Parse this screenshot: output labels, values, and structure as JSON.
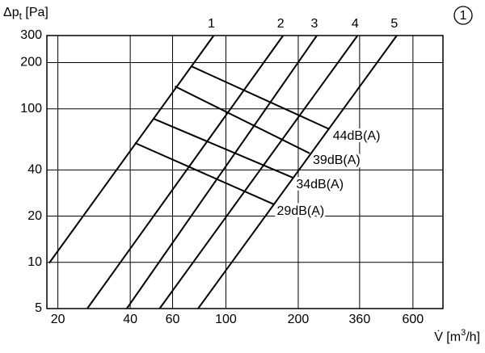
{
  "chart_data": {
    "type": "line",
    "log_x": true,
    "log_y": true,
    "grid": true,
    "color": "#000000",
    "ylabel": [
      "Δp",
      "t",
      " [Pa]"
    ],
    "xlabel": [
      "V̇ [m",
      "3",
      "/h]"
    ],
    "badge": "1",
    "xlim": [
      18,
      800
    ],
    "ylim": [
      5,
      300
    ],
    "xticks": [
      20,
      40,
      60,
      100,
      200,
      360,
      600
    ],
    "yticks": [
      5,
      10,
      20,
      40,
      100,
      200,
      300
    ],
    "series": [
      {
        "name": "1",
        "color": "#000000",
        "x": [
          18.4,
          89
        ],
        "values": [
          9.9,
          300
        ]
      },
      {
        "name": "2",
        "color": "#000000",
        "x": [
          26.5,
          173
        ],
        "values": [
          5,
          300
        ]
      },
      {
        "name": "3",
        "color": "#000000",
        "x": [
          38.7,
          239
        ],
        "values": [
          5,
          300
        ]
      },
      {
        "name": "4",
        "color": "#000000",
        "x": [
          53,
          353
        ],
        "values": [
          5,
          300
        ]
      },
      {
        "name": "5",
        "color": "#000000",
        "x": [
          76.6,
          514
        ],
        "values": [
          5,
          300
        ]
      },
      {
        "name": "44dB(A)",
        "color": "#000000",
        "x": [
          71.4,
          270
        ],
        "values": [
          190,
          73.6
        ]
      },
      {
        "name": "39dB(A)",
        "color": "#000000",
        "x": [
          61.4,
          223
        ],
        "values": [
          140,
          51.3
        ]
      },
      {
        "name": "34dB(A)",
        "color": "#000000",
        "x": [
          49.9,
          190
        ],
        "values": [
          86.3,
          35.6
        ]
      },
      {
        "name": "29dB(A)",
        "color": "#000000",
        "x": [
          41.8,
          158
        ],
        "values": [
          60,
          23.9
        ]
      }
    ]
  }
}
